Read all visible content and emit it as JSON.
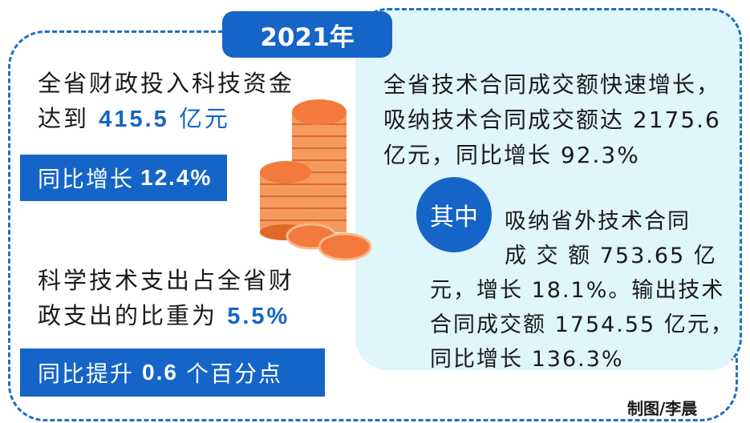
{
  "year_badge": "2021年",
  "left_top": {
    "line1": "全省财政投入科技资金",
    "line2_prefix": "达到",
    "line2_value": "415.5",
    "line2_unit": "亿元",
    "bar_label": "同比增长",
    "bar_value": "12.4%"
  },
  "left_bottom": {
    "line1": "科学技术支出占全省财",
    "line2_prefix": "政支出的比重为",
    "line2_value": "5.5%",
    "bar_label": "同比提升",
    "bar_value": "0.6",
    "bar_suffix": "个百分点"
  },
  "right": {
    "line1": "全省技术合同成交额快速增长，",
    "line2": "吸纳技术合同成交额达 2175.6",
    "line3": "亿元，同比增长 92.3%",
    "circle_label": "其中",
    "sub1": "吸纳省外技术合同",
    "sub2": "成 交 额 753.65 亿",
    "sub3": "元，增长 18.1%。输出技术",
    "sub4": "合同成交额 1754.55 亿元，",
    "sub5": "同比增长 136.3%"
  },
  "credit": "制图/李晨",
  "colors": {
    "accent": "#1565c8",
    "panel": "#dff6fb",
    "coin": "#f37a3c"
  }
}
